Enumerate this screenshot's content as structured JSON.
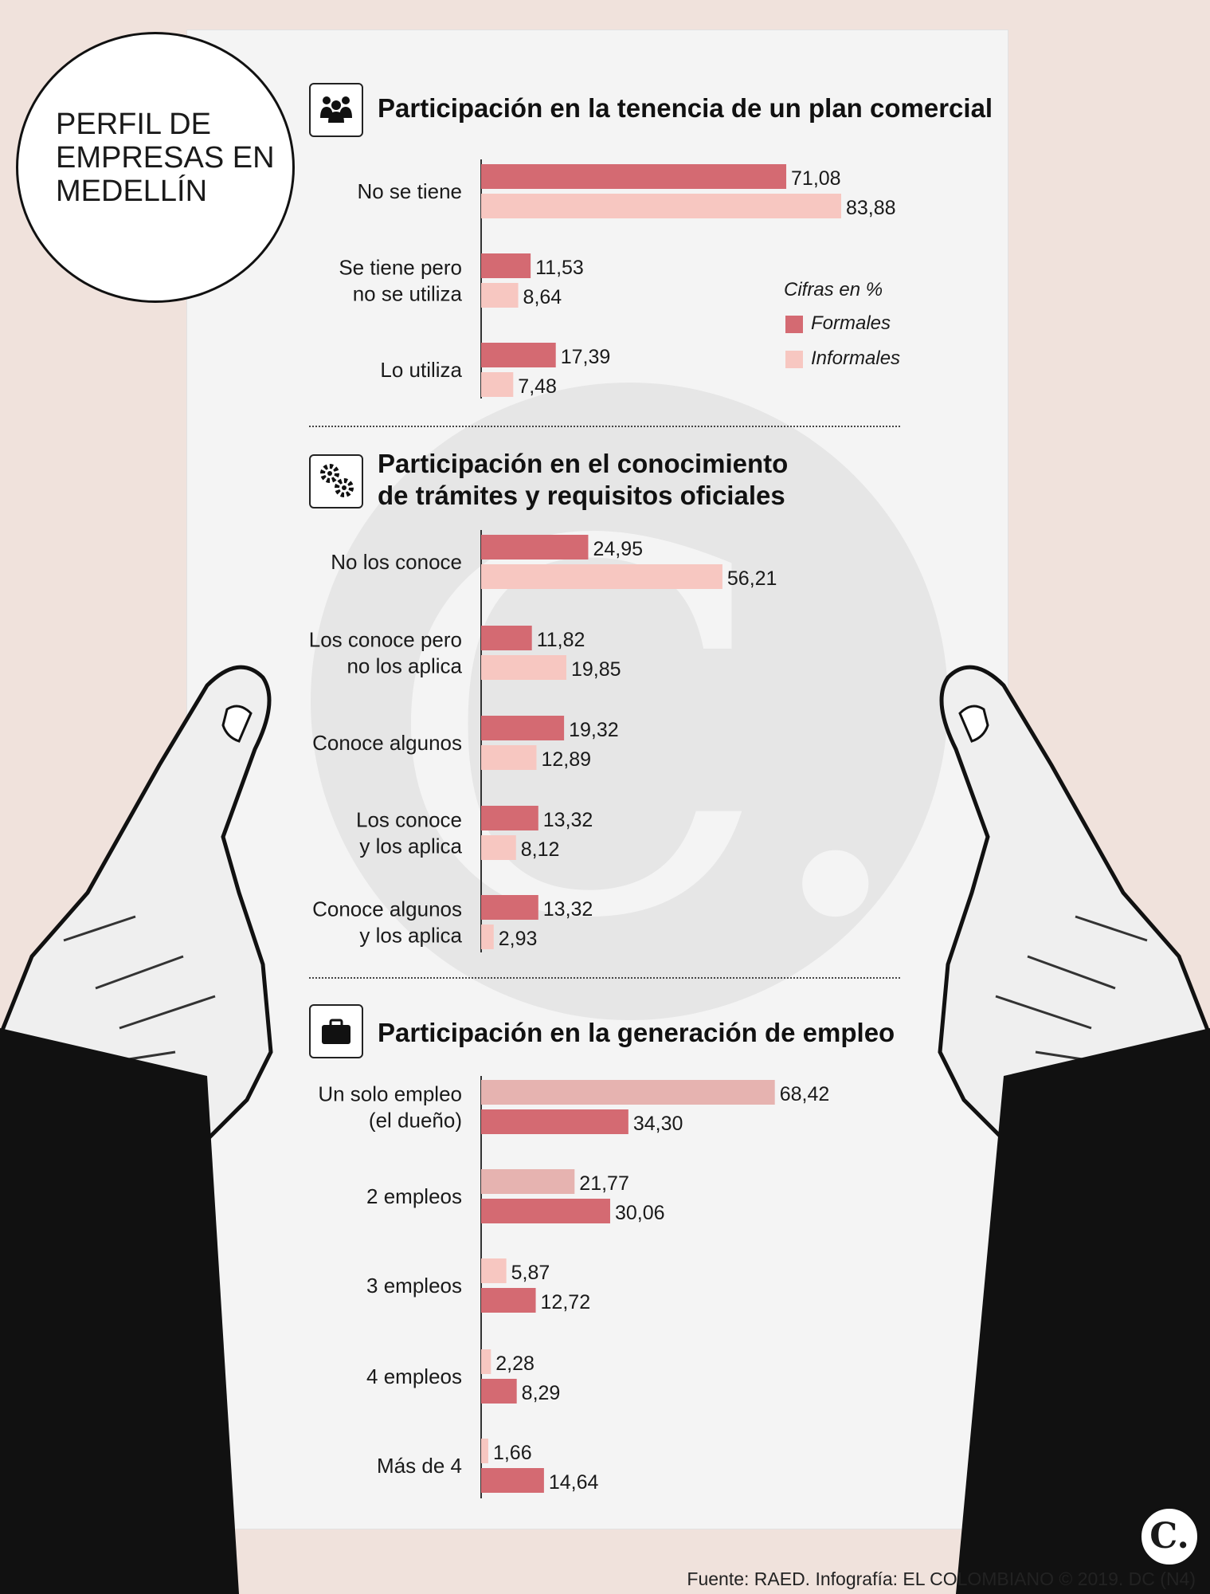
{
  "title": {
    "lines": [
      "PERFIL DE",
      "EMPRESAS EN",
      "MEDELLÍN"
    ]
  },
  "legend": {
    "title": "Cifras en %",
    "items": [
      "Formales",
      "Informales"
    ]
  },
  "colors": {
    "formales": "#d46a72",
    "informales": "#f7c7c1",
    "informales_alt": "#e6b3b0",
    "axis": "#333333"
  },
  "source": "Fuente: RAED. Infografía: EL COLOMBIANO © 2019. DC (N4)",
  "logo": "C.",
  "watermark": "C.",
  "icons": [
    "people-icon",
    "gears-icon",
    "briefcase-icon"
  ],
  "chart_data": [
    {
      "type": "bar",
      "orientation": "horizontal",
      "title": "Participación en la tenencia de un plan comercial",
      "categories": [
        [
          "No se tiene"
        ],
        [
          "Se tiene pero",
          "no se utiliza"
        ],
        [
          "Lo utiliza"
        ]
      ],
      "series": [
        {
          "name": "Formales",
          "values": [
            71.08,
            11.53,
            17.39
          ],
          "labels": [
            "71,08",
            "11,53",
            "17,39"
          ]
        },
        {
          "name": "Informales",
          "values": [
            83.88,
            8.64,
            7.48
          ],
          "labels": [
            "83,88",
            "8,64",
            "7,48"
          ]
        }
      ]
    },
    {
      "type": "bar",
      "orientation": "horizontal",
      "title": [
        "Participación en el conocimiento",
        "de trámites y requisitos oficiales"
      ],
      "categories": [
        [
          "No los conoce"
        ],
        [
          "Los conoce pero",
          "no los aplica"
        ],
        [
          "Conoce algunos"
        ],
        [
          "Los conoce",
          "y los aplica"
        ],
        [
          "Conoce algunos",
          "y los aplica"
        ]
      ],
      "series": [
        {
          "name": "Formales",
          "values": [
            24.95,
            11.82,
            19.32,
            13.32,
            13.32
          ],
          "labels": [
            "24,95",
            "11,82",
            "19,32",
            "13,32",
            "13,32"
          ]
        },
        {
          "name": "Informales",
          "values": [
            56.21,
            19.85,
            12.89,
            8.12,
            2.93
          ],
          "labels": [
            "56,21",
            "19,85",
            "12,89",
            "8,12",
            "2,93"
          ]
        }
      ]
    },
    {
      "type": "bar",
      "orientation": "horizontal",
      "title": "Participación en la generación de empleo",
      "categories": [
        [
          "Un solo empleo",
          "(el dueño)"
        ],
        [
          "2 empleos"
        ],
        [
          "3 empleos"
        ],
        [
          "4 empleos"
        ],
        [
          "Más de 4"
        ]
      ],
      "series": [
        {
          "name": "Informales",
          "values": [
            68.42,
            21.77,
            5.87,
            2.28,
            1.66
          ],
          "labels": [
            "68,42",
            "21,77",
            "5,87",
            "2,28",
            "1,66"
          ]
        },
        {
          "name": "Formales",
          "values": [
            34.3,
            30.06,
            12.72,
            8.29,
            14.64
          ],
          "labels": [
            "34,30",
            "30,06",
            "12,72",
            "8,29",
            "14,64"
          ]
        }
      ]
    }
  ]
}
